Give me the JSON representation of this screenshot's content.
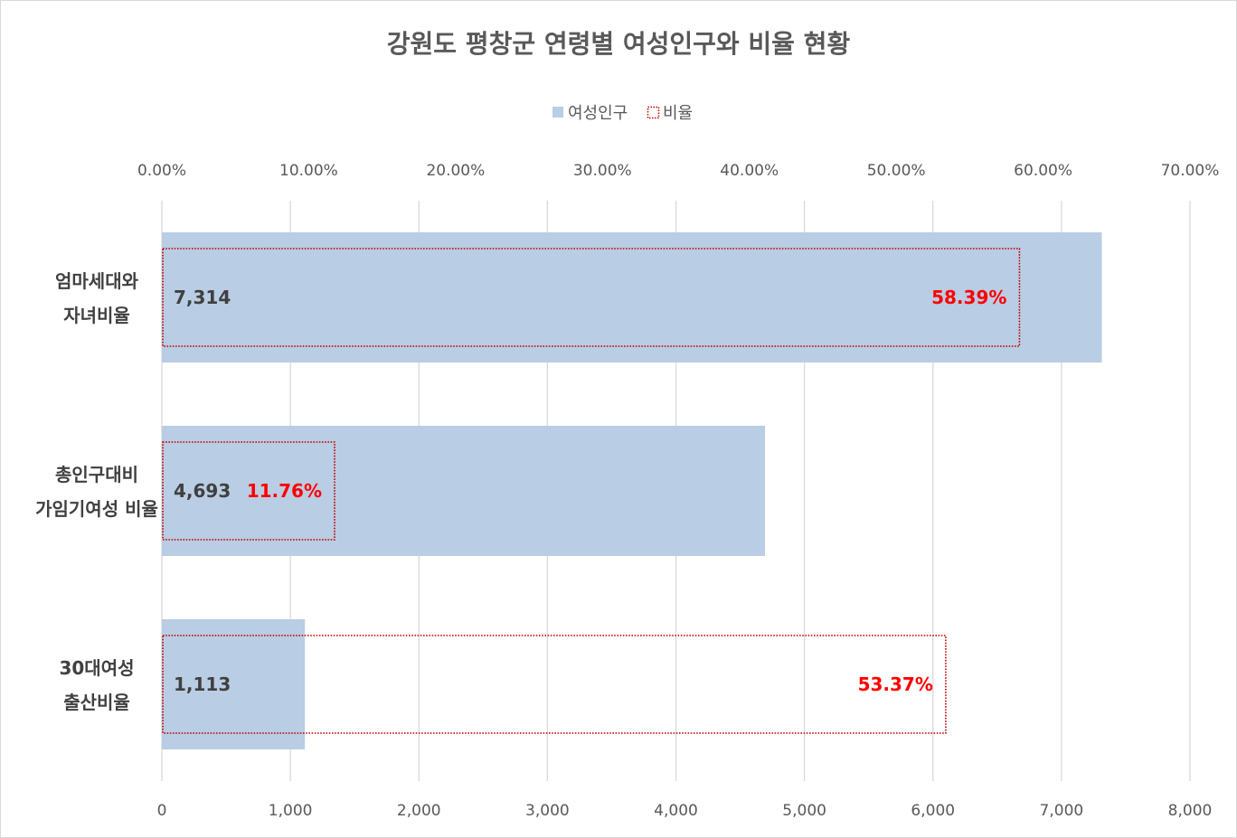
{
  "chart_data": {
    "type": "bar",
    "orientation": "horizontal",
    "title": "강원도 평창군 연령별 여성인구와 비율 현황",
    "legend": {
      "placement": "top",
      "items": [
        {
          "label": "여성인구",
          "style": "filled"
        },
        {
          "label": "비율",
          "style": "dotted-outline"
        }
      ]
    },
    "categories": [
      [
        "엄마세대와",
        "자녀비율"
      ],
      [
        "총인구대비",
        "가임기여성 비율"
      ],
      [
        "30대여성",
        "출산비율"
      ]
    ],
    "series": [
      {
        "name": "여성인구",
        "axis": "bottom",
        "values": [
          7314,
          4693,
          1113
        ],
        "labels": [
          "7,314",
          "4,693",
          "1,113"
        ]
      },
      {
        "name": "비율",
        "axis": "top",
        "values": [
          58.39,
          11.76,
          53.37
        ],
        "labels": [
          "58.39%",
          "11.76%",
          "53.37%"
        ]
      }
    ],
    "bottom_axis": {
      "range": [
        0,
        8000
      ],
      "ticks": [
        "0",
        "1,000",
        "2,000",
        "3,000",
        "4,000",
        "5,000",
        "6,000",
        "7,000",
        "8,000"
      ]
    },
    "top_axis": {
      "range": [
        0,
        70
      ],
      "ticks": [
        "0.00%",
        "10.00%",
        "20.00%",
        "30.00%",
        "40.00%",
        "50.00%",
        "60.00%",
        "70.00%"
      ]
    },
    "grid": true,
    "colors": {
      "bar_fill": "#b9cde4",
      "ratio_outline": "#c00000",
      "ratio_label": "#ff0000",
      "grid": "#d9d9d9"
    }
  }
}
